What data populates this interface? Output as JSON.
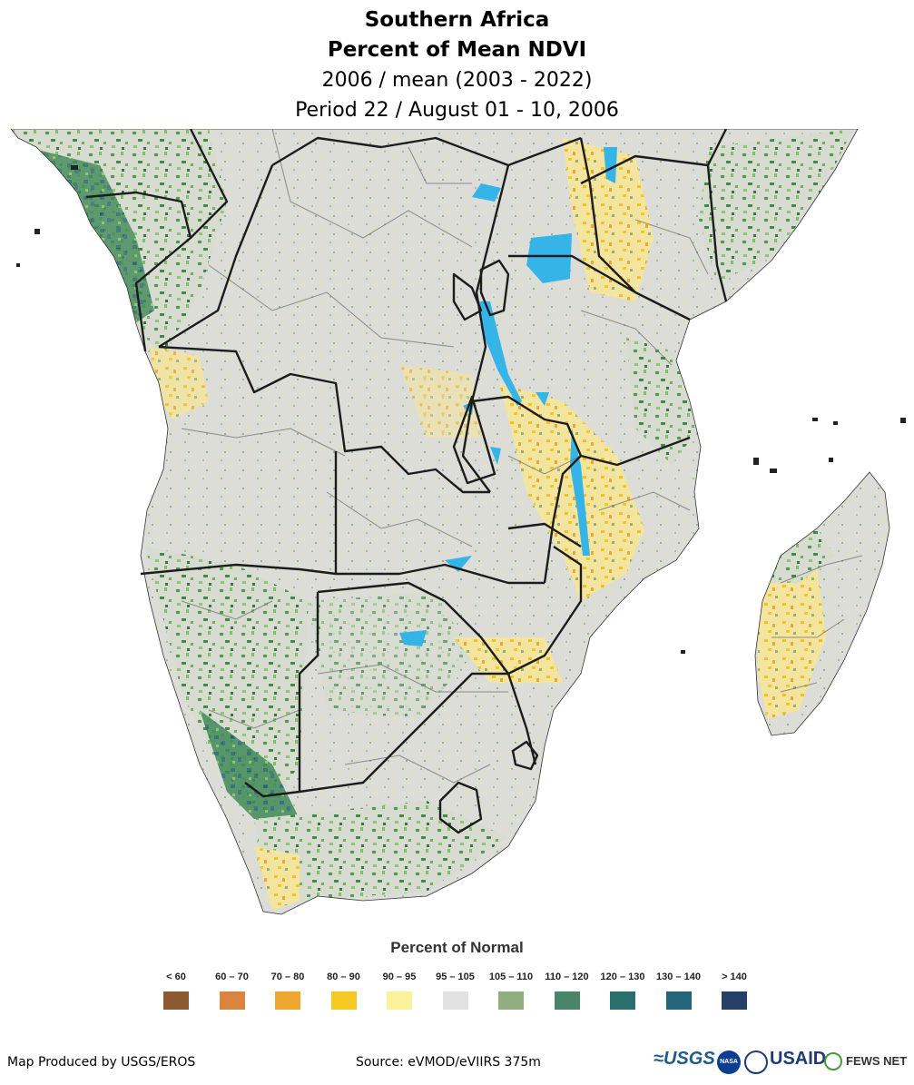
{
  "title": {
    "line1": "Southern Africa",
    "line2": "Percent of Mean NDVI",
    "line3": "2006 / mean (2003 - 2022)",
    "line4": "Period 22 / August 01 - 10, 2006"
  },
  "legend": {
    "title": "Percent of Normal",
    "classes": [
      {
        "label": "< 60",
        "color": "#8c5a32"
      },
      {
        "label": "60 – 70",
        "color": "#d98540"
      },
      {
        "label": "70 – 80",
        "color": "#eea82f"
      },
      {
        "label": "80 – 90",
        "color": "#f6c823"
      },
      {
        "label": "90 – 95",
        "color": "#fbf39c"
      },
      {
        "label": "95 – 105",
        "color": "#e2e2e2"
      },
      {
        "label": "105 – 110",
        "color": "#92ad80"
      },
      {
        "label": "110 – 120",
        "color": "#4a8469"
      },
      {
        "label": "120 – 130",
        "color": "#2a6f6c"
      },
      {
        "label": "130 – 140",
        "color": "#26647a"
      },
      {
        "label": "> 140",
        "color": "#263f66"
      }
    ]
  },
  "map": {
    "water_color": "#35b4e8",
    "border_color": "#222222",
    "admin_color": "#666666"
  },
  "footer": {
    "produced_by": "Map Produced by USGS/EROS",
    "source": "Source: eVMOD/eVIIRS 375m"
  },
  "logos": {
    "usgs": "USGS",
    "nasa": "NASA",
    "usaid": "USAID",
    "fewsnet": "FEWS NET"
  }
}
